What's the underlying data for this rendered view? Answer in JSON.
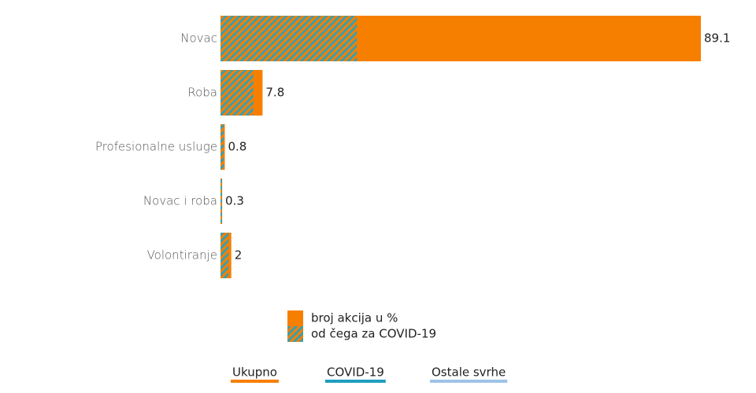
{
  "chart_data": {
    "type": "overlay-bar",
    "categories": [
      "Novac",
      "Roba",
      "Profesionalne usluge",
      "Novac i roba",
      "Volontiranje"
    ],
    "series": [
      {
        "name": "broj akcija u %",
        "color": "#f77f00",
        "values": [
          89.1,
          7.8,
          0.8,
          0.3,
          2
        ]
      },
      {
        "name": "od čega za COVID-19",
        "color": "#3a9fae",
        "values": [
          25.3,
          6.1,
          0.6,
          0.3,
          1.5
        ]
      }
    ]
  },
  "tabs": [
    {
      "label": "Ukupno",
      "color": "#f77f00"
    },
    {
      "label": "COVID-19",
      "color": "#1f9dc1"
    },
    {
      "label": "Ostale svrhe",
      "color": "#9fc3e6"
    }
  ]
}
